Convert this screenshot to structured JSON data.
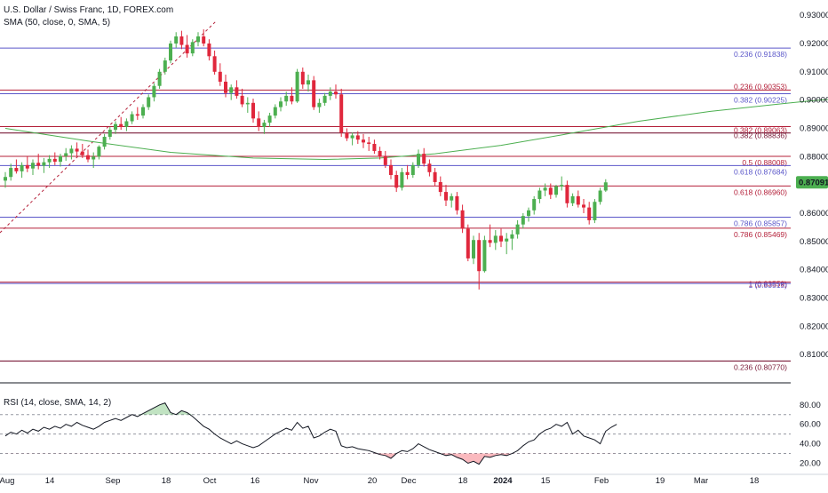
{
  "header": {
    "symbol_line": "U.S. Dollar / Swiss Franc, 1D, FOREX.com",
    "sma_line": "SMA (50, close, 0, SMA, 5)",
    "rsi_line": "RSI (14, close, SMA, 14, 2)"
  },
  "colors": {
    "up": "#26a69a",
    "up_fill": "#4caf50",
    "down": "#e0273c",
    "sma": "#4caf50",
    "fib_blue": "#5b57c9",
    "fib_red": "#b4213a",
    "fib_dark": "#7b1d3a",
    "grid_dark": "#131722",
    "rsi_line": "#131722",
    "price_badge": "#4caf50"
  },
  "chart_data": [
    {
      "type": "candlestick",
      "title": "U.S. Dollar / Swiss Franc, 1D, FOREX.com",
      "ylim": [
        0.8025,
        0.9335
      ],
      "y_ticks": [
        "0.93000",
        "0.92000",
        "0.91000",
        "0.90000",
        "0.89000",
        "0.88000",
        "0.87000",
        "0.86000",
        "0.85000",
        "0.84000",
        "0.83000",
        "0.82000",
        "0.81000"
      ],
      "x_ticks": [
        "Aug",
        "14",
        "Sep",
        "18",
        "Oct",
        "16",
        "Nov",
        "20",
        "Dec",
        "18",
        "2024",
        "15",
        "Feb",
        "19",
        "Mar",
        "18"
      ],
      "last_price": "0.87091",
      "fib_levels": [
        {
          "label": "0.236 (0.91838)",
          "value": 0.91838,
          "color": "blue"
        },
        {
          "label": "0.236 (0.90353)",
          "value": 0.90353,
          "color": "red"
        },
        {
          "label": "0.382 (0.90225)",
          "value": 0.90225,
          "color": "blue"
        },
        {
          "label": "0.382 (0.89063)",
          "value": 0.89063,
          "color": "red"
        },
        {
          "label": "0.382 (0.88836)",
          "value": 0.88836,
          "color": "dark"
        },
        {
          "label": "0.5 (0.88008)",
          "value": 0.88008,
          "color": "red"
        },
        {
          "label": "0.618 (0.87684)",
          "value": 0.87684,
          "color": "blue"
        },
        {
          "label": "0.618 (0.86960)",
          "value": 0.8696,
          "color": "red"
        },
        {
          "label": "0.786 (0.85857)",
          "value": 0.85857,
          "color": "blue"
        },
        {
          "label": "0.786 (0.85469)",
          "value": 0.85469,
          "color": "red"
        },
        {
          "label": "1 (0.83559)",
          "value": 0.83559,
          "color": "red"
        },
        {
          "label": "1 (0.83515)",
          "value": 0.83515,
          "color": "blue"
        },
        {
          "label": "0.236 (0.80770)",
          "value": 0.8077,
          "color": "dark"
        }
      ],
      "candles": [
        [
          0.8715,
          0.8745,
          0.869,
          0.8728
        ],
        [
          0.8728,
          0.8775,
          0.8715,
          0.876
        ],
        [
          0.876,
          0.879,
          0.874,
          0.8748
        ],
        [
          0.8748,
          0.878,
          0.8725,
          0.877
        ],
        [
          0.877,
          0.88,
          0.8745,
          0.8758
        ],
        [
          0.8758,
          0.879,
          0.8735,
          0.8778
        ],
        [
          0.8778,
          0.881,
          0.8755,
          0.8768
        ],
        [
          0.8768,
          0.8795,
          0.8742,
          0.878
        ],
        [
          0.878,
          0.8805,
          0.876,
          0.8792
        ],
        [
          0.8792,
          0.8815,
          0.877,
          0.8782
        ],
        [
          0.8782,
          0.881,
          0.8765,
          0.8802
        ],
        [
          0.8802,
          0.883,
          0.8785,
          0.8812
        ],
        [
          0.8812,
          0.884,
          0.879,
          0.8828
        ],
        [
          0.8828,
          0.885,
          0.88,
          0.8818
        ],
        [
          0.8818,
          0.8845,
          0.8795,
          0.8805
        ],
        [
          0.8805,
          0.8825,
          0.878,
          0.879
        ],
        [
          0.879,
          0.8815,
          0.876,
          0.88
        ],
        [
          0.88,
          0.884,
          0.879,
          0.8835
        ],
        [
          0.8835,
          0.888,
          0.8825,
          0.887
        ],
        [
          0.887,
          0.8905,
          0.886,
          0.8895
        ],
        [
          0.8895,
          0.8925,
          0.888,
          0.8915
        ],
        [
          0.8915,
          0.894,
          0.8895,
          0.8905
        ],
        [
          0.8905,
          0.8935,
          0.889,
          0.8925
        ],
        [
          0.8925,
          0.896,
          0.8915,
          0.895
        ],
        [
          0.895,
          0.8975,
          0.893,
          0.8945
        ],
        [
          0.8945,
          0.8985,
          0.8935,
          0.8975
        ],
        [
          0.8975,
          0.902,
          0.8965,
          0.901
        ],
        [
          0.901,
          0.906,
          0.8995,
          0.905
        ],
        [
          0.905,
          0.911,
          0.904,
          0.91
        ],
        [
          0.91,
          0.915,
          0.909,
          0.914
        ],
        [
          0.914,
          0.921,
          0.913,
          0.92
        ],
        [
          0.92,
          0.924,
          0.9185,
          0.9225
        ],
        [
          0.9225,
          0.9245,
          0.918,
          0.9195
        ],
        [
          0.9195,
          0.923,
          0.915,
          0.9165
        ],
        [
          0.9165,
          0.9215,
          0.9155,
          0.9205
        ],
        [
          0.9205,
          0.924,
          0.919,
          0.9225
        ],
        [
          0.9225,
          0.925,
          0.919,
          0.92
        ],
        [
          0.92,
          0.9215,
          0.914,
          0.9155
        ],
        [
          0.9155,
          0.9175,
          0.909,
          0.91
        ],
        [
          0.91,
          0.913,
          0.905,
          0.9065
        ],
        [
          0.9065,
          0.909,
          0.901,
          0.9025
        ],
        [
          0.9025,
          0.9055,
          0.9,
          0.9045
        ],
        [
          0.9045,
          0.907,
          0.9005,
          0.9015
        ],
        [
          0.9015,
          0.904,
          0.8975,
          0.8985
        ],
        [
          0.8985,
          0.901,
          0.8955,
          0.899
        ],
        [
          0.899,
          0.9005,
          0.892,
          0.8935
        ],
        [
          0.8935,
          0.896,
          0.889,
          0.8905
        ],
        [
          0.8905,
          0.893,
          0.888,
          0.892
        ],
        [
          0.892,
          0.8955,
          0.8905,
          0.8945
        ],
        [
          0.8945,
          0.8985,
          0.8935,
          0.8975
        ],
        [
          0.8975,
          0.901,
          0.896,
          0.8995
        ],
        [
          0.8995,
          0.903,
          0.898,
          0.9015
        ],
        [
          0.9015,
          0.9045,
          0.8985,
          0.8995
        ],
        [
          0.8995,
          0.911,
          0.899,
          0.91
        ],
        [
          0.91,
          0.9115,
          0.904,
          0.9055
        ],
        [
          0.9055,
          0.909,
          0.903,
          0.907
        ],
        [
          0.907,
          0.9085,
          0.8965,
          0.8975
        ],
        [
          0.8975,
          0.9005,
          0.8955,
          0.899
        ],
        [
          0.899,
          0.9025,
          0.898,
          0.9015
        ],
        [
          0.9015,
          0.9045,
          0.9,
          0.903
        ],
        [
          0.903,
          0.9055,
          0.9005,
          0.902
        ],
        [
          0.902,
          0.904,
          0.887,
          0.8885
        ],
        [
          0.8885,
          0.89,
          0.8855,
          0.8865
        ],
        [
          0.8865,
          0.8885,
          0.884,
          0.8875
        ],
        [
          0.8875,
          0.889,
          0.8845,
          0.886
        ],
        [
          0.886,
          0.888,
          0.883,
          0.885
        ],
        [
          0.885,
          0.887,
          0.882,
          0.8845
        ],
        [
          0.8845,
          0.886,
          0.881,
          0.882
        ],
        [
          0.882,
          0.8835,
          0.879,
          0.88
        ],
        [
          0.88,
          0.882,
          0.876,
          0.877
        ],
        [
          0.877,
          0.879,
          0.872,
          0.8735
        ],
        [
          0.8735,
          0.875,
          0.8675,
          0.869
        ],
        [
          0.869,
          0.876,
          0.868,
          0.8745
        ],
        [
          0.8745,
          0.877,
          0.872,
          0.8735
        ],
        [
          0.8735,
          0.878,
          0.8725,
          0.877
        ],
        [
          0.877,
          0.8825,
          0.876,
          0.881
        ],
        [
          0.881,
          0.883,
          0.8765,
          0.8775
        ],
        [
          0.8775,
          0.879,
          0.873,
          0.8745
        ],
        [
          0.8745,
          0.876,
          0.8695,
          0.871
        ],
        [
          0.871,
          0.873,
          0.866,
          0.8675
        ],
        [
          0.8675,
          0.87,
          0.8625,
          0.8645
        ],
        [
          0.8645,
          0.867,
          0.862,
          0.866
        ],
        [
          0.866,
          0.8675,
          0.8595,
          0.861
        ],
        [
          0.861,
          0.863,
          0.853,
          0.8545
        ],
        [
          0.8545,
          0.856,
          0.843,
          0.844
        ],
        [
          0.844,
          0.852,
          0.842,
          0.8505
        ],
        [
          0.8505,
          0.853,
          0.833,
          0.8395
        ],
        [
          0.8395,
          0.852,
          0.839,
          0.8505
        ],
        [
          0.8505,
          0.856,
          0.848,
          0.8495
        ],
        [
          0.8495,
          0.854,
          0.847,
          0.852
        ],
        [
          0.852,
          0.8545,
          0.848,
          0.85
        ],
        [
          0.85,
          0.853,
          0.8455,
          0.851
        ],
        [
          0.851,
          0.854,
          0.847,
          0.8525
        ],
        [
          0.8525,
          0.8575,
          0.851,
          0.856
        ],
        [
          0.856,
          0.86,
          0.8545,
          0.859
        ],
        [
          0.859,
          0.862,
          0.857,
          0.861
        ],
        [
          0.861,
          0.866,
          0.8595,
          0.865
        ],
        [
          0.865,
          0.869,
          0.8635,
          0.868
        ],
        [
          0.868,
          0.8705,
          0.866,
          0.869
        ],
        [
          0.869,
          0.8705,
          0.865,
          0.8665
        ],
        [
          0.8665,
          0.87,
          0.8655,
          0.8695
        ],
        [
          0.8695,
          0.873,
          0.868,
          0.87
        ],
        [
          0.87,
          0.8715,
          0.862,
          0.8635
        ],
        [
          0.8635,
          0.867,
          0.8625,
          0.866
        ],
        [
          0.866,
          0.868,
          0.862,
          0.863
        ],
        [
          0.863,
          0.865,
          0.86,
          0.862
        ],
        [
          0.862,
          0.864,
          0.856,
          0.8575
        ],
        [
          0.8575,
          0.865,
          0.8565,
          0.864
        ],
        [
          0.864,
          0.869,
          0.863,
          0.868
        ],
        [
          0.868,
          0.872,
          0.8675,
          0.8709
        ]
      ],
      "sma": [
        [
          0,
          0.89
        ],
        [
          15,
          0.8855
        ],
        [
          30,
          0.8815
        ],
        [
          45,
          0.8795
        ],
        [
          58,
          0.879
        ],
        [
          68,
          0.8795
        ],
        [
          78,
          0.881
        ],
        [
          90,
          0.884
        ],
        [
          102,
          0.888
        ],
        [
          115,
          0.8925
        ],
        [
          128,
          0.896
        ],
        [
          145,
          0.8995
        ],
        [
          160,
          0.902
        ],
        [
          175,
          0.9035
        ],
        [
          190,
          0.9042
        ],
        [
          205,
          0.904
        ],
        [
          220,
          0.903
        ],
        [
          240,
          0.901
        ],
        [
          260,
          0.8985
        ],
        [
          285,
          0.895
        ],
        [
          310,
          0.8905
        ],
        [
          335,
          0.886
        ],
        [
          360,
          0.8815
        ],
        [
          385,
          0.877
        ],
        [
          410,
          0.873
        ],
        [
          435,
          0.8695
        ],
        [
          455,
          0.867
        ],
        [
          470,
          0.866
        ],
        [
          488,
          0.866
        ],
        [
          500,
          0.8665
        ]
      ]
    },
    {
      "type": "line",
      "title": "RSI (14, close, SMA, 14, 2)",
      "ylim": [
        15,
        88
      ],
      "y_ticks": [
        "80.00",
        "60.00",
        "40.00",
        "20.00"
      ],
      "bands": [
        30,
        50,
        70
      ],
      "values": [
        48,
        52,
        50,
        54,
        51,
        55,
        53,
        57,
        55,
        58,
        56,
        60,
        58,
        62,
        59,
        57,
        55,
        58,
        62,
        64,
        66,
        64,
        67,
        70,
        68,
        71,
        74,
        77,
        80,
        82,
        72,
        70,
        74,
        72,
        68,
        63,
        58,
        55,
        50,
        46,
        43,
        40,
        43,
        40,
        38,
        36,
        38,
        42,
        46,
        50,
        53,
        56,
        54,
        62,
        56,
        58,
        46,
        48,
        52,
        55,
        53,
        38,
        36,
        37,
        35,
        34,
        33,
        31,
        29,
        28,
        25,
        30,
        33,
        32,
        35,
        40,
        37,
        34,
        32,
        30,
        28,
        29,
        26,
        24,
        20,
        22,
        19,
        27,
        26,
        28,
        29,
        28,
        30,
        33,
        38,
        42,
        44,
        50,
        54,
        56,
        60,
        58,
        62,
        50,
        54,
        48,
        46,
        44,
        40,
        53,
        57,
        60
      ]
    }
  ]
}
